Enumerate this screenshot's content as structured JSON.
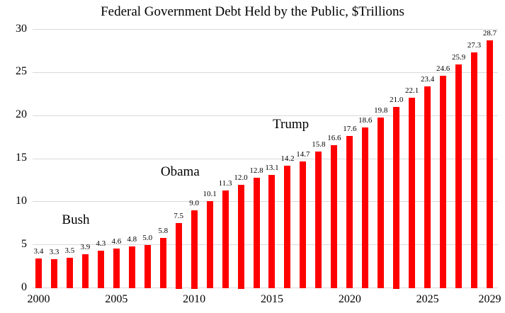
{
  "chart_data": {
    "type": "bar",
    "title": "Federal Government Debt Held by the Public, $Trillions",
    "xlabel": "",
    "ylabel": "",
    "categories": [
      "2000",
      "2001",
      "2002",
      "2003",
      "2004",
      "2005",
      "2006",
      "2007",
      "2008",
      "2009",
      "2010",
      "2011",
      "2012",
      "2013",
      "2014",
      "2015",
      "2016",
      "2017",
      "2018",
      "2019",
      "2020",
      "2021",
      "2022",
      "2023",
      "2024",
      "2025",
      "2026",
      "2027",
      "2028",
      "2029"
    ],
    "values": [
      3.4,
      3.3,
      3.5,
      3.9,
      4.3,
      4.6,
      4.8,
      5.0,
      5.8,
      7.5,
      9.0,
      10.1,
      11.3,
      12.0,
      12.8,
      13.1,
      14.2,
      14.7,
      15.8,
      16.6,
      17.6,
      18.6,
      19.8,
      21.0,
      22.1,
      23.4,
      24.6,
      25.9,
      27.3,
      28.7
    ],
    "data_labels_shown": true,
    "data_label_decimals": 1,
    "ylim": [
      0,
      30
    ],
    "yticks": [
      0,
      5,
      10,
      15,
      20,
      25,
      30
    ],
    "xtick_labels": [
      "2000",
      "2005",
      "2010",
      "2015",
      "2020",
      "2025",
      "2029"
    ],
    "grid": "horizontal",
    "legend": "none",
    "colors": {
      "bar": "#FF0000",
      "gridline": "#D9D9D9",
      "axis_line": "#D9D9D9",
      "text": "#000000",
      "background": "#FFFFFF"
    },
    "annotations": [
      {
        "label": "Bush",
        "year": 2001.5,
        "value": 8.75
      },
      {
        "label": "Obama",
        "year": 2007.85,
        "value": 14.35
      },
      {
        "label": "Trump",
        "year": 2015.05,
        "value": 19.85
      }
    ]
  }
}
